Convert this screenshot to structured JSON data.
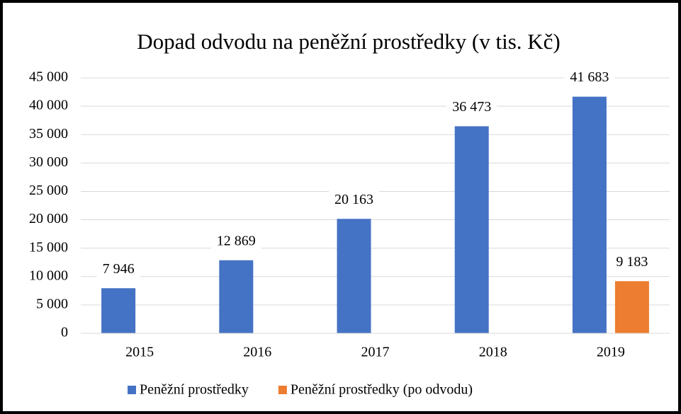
{
  "chart_data": {
    "type": "bar",
    "title": "Dopad odvodu na peněžní prostředky (v tis. Kč)",
    "categories": [
      "2015",
      "2016",
      "2017",
      "2018",
      "2019"
    ],
    "series": [
      {
        "name": "Peněžní prostředky",
        "color": "#4472c4",
        "values": [
          7946,
          12869,
          20163,
          36473,
          41683
        ],
        "value_labels": [
          "7 946",
          "12 869",
          "20 163",
          "36 473",
          "41 683"
        ]
      },
      {
        "name": "Peněžní prostředky (po odvodu)",
        "color": "#ed7d31",
        "values": [
          null,
          null,
          null,
          null,
          9183
        ],
        "value_labels": [
          null,
          null,
          null,
          null,
          "9 183"
        ]
      }
    ],
    "ylim": [
      0,
      45000
    ],
    "yticks": [
      0,
      {
        "value": 5000,
        "label": "5 000"
      },
      {
        "value": 10000,
        "label": "10 000"
      },
      {
        "value": 15000,
        "label": "15 000"
      },
      {
        "value": 20000,
        "label": "20 000"
      },
      {
        "value": 25000,
        "label": "25 000"
      },
      {
        "value": 30000,
        "label": "30 000"
      },
      {
        "value": 35000,
        "label": "35 000"
      },
      {
        "value": 40000,
        "label": "40 000"
      },
      {
        "value": 45000,
        "label": "45 000"
      }
    ],
    "grid": true,
    "legend": "bottom"
  }
}
